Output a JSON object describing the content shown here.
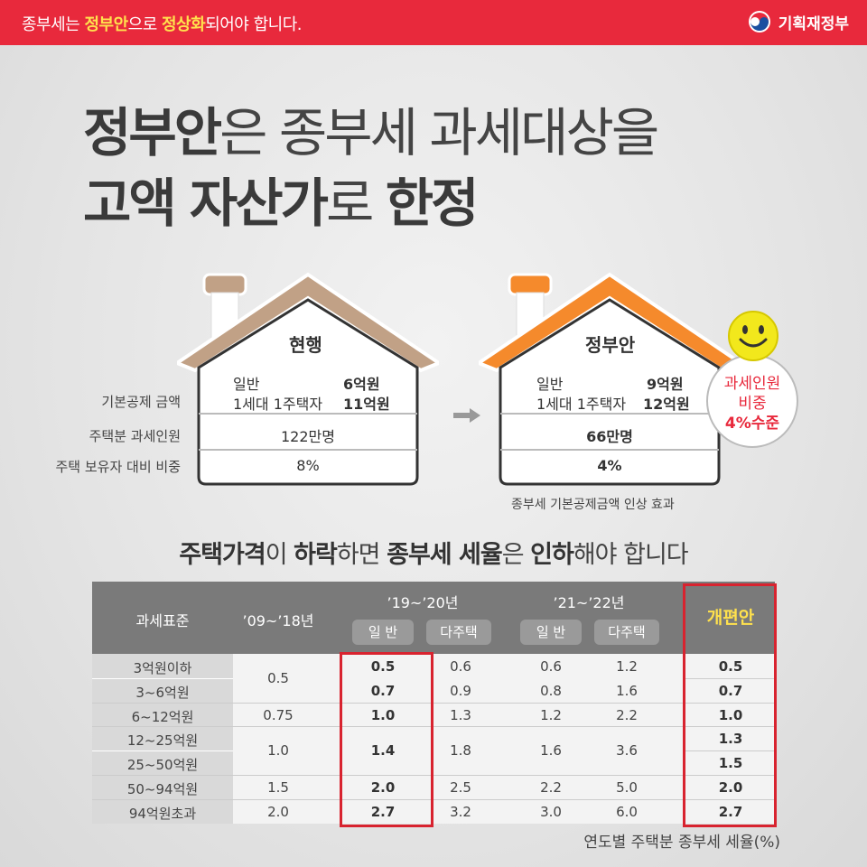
{
  "topbar": {
    "message_part1": "종부세는 ",
    "message_hl1": "정부안",
    "message_part2": "으로 ",
    "message_hl2": "정상화",
    "message_part3": "되어야 합니다.",
    "brand": "기획재정부",
    "brand_icon": "taegeuk-logo",
    "color": "#e8293c"
  },
  "headline": {
    "line1_bold": "정부안",
    "line1_rest": "은 종부세 과세대상을",
    "line2_bold1": "고액 자산가",
    "line2_mid": "로 ",
    "line2_bold2": "한정"
  },
  "row_labels": [
    "기본공제 금액",
    "주택분 과세인원",
    "주택 보유자 대비 비중"
  ],
  "current": {
    "title": "현행",
    "general_label": "일반",
    "general_value": "6억원",
    "single_label": "1세대 1주택자",
    "single_value": "11억원",
    "taxpayers": "122만명",
    "ratio": "8%"
  },
  "proposal": {
    "title": "정부안",
    "general_label": "일반",
    "general_value": "9억원",
    "single_label": "1세대 1주택자",
    "single_value": "12억원",
    "taxpayers": "66만명",
    "ratio": "4%",
    "caption": "종부세 기본공제금액 인상 효과"
  },
  "bubble": {
    "line1": "과세인원",
    "line2": "비중",
    "line3": "4%수준"
  },
  "subhead": {
    "p1": "주택가격",
    "p2": "이 ",
    "p3": "하락",
    "p4": "하면 ",
    "p5": "종부세 세율",
    "p6": "은 ",
    "p7": "인하",
    "p8": "해야 합니다"
  },
  "table": {
    "headers": {
      "bracket": "과세표준",
      "period1": "’09~’18년",
      "period2": "’19~’20년",
      "period3": "’21~’22년",
      "general": "일 반",
      "multi": "다주택",
      "reform": "개편안"
    },
    "rows": [
      {
        "bracket": "3억원이하",
        "g19": "0.5",
        "m19": "0.6",
        "g21": "0.6",
        "m21": "1.2",
        "reform": "0.5"
      },
      {
        "bracket": "3~6억원",
        "g19": "0.7",
        "m19": "0.9",
        "g21": "0.8",
        "m21": "1.6",
        "reform": "0.7"
      },
      {
        "bracket": "6~12억원",
        "old": "0.75",
        "g19": "1.0",
        "m19": "1.3",
        "g21": "1.2",
        "m21": "2.2",
        "reform": "1.0"
      },
      {
        "bracket": "12~25억원",
        "reform": "1.3"
      },
      {
        "bracket": "25~50억원",
        "reform": "1.5"
      },
      {
        "bracket": "50~94억원",
        "old": "1.5",
        "g19": "2.0",
        "m19": "2.5",
        "g21": "2.2",
        "m21": "5.0",
        "reform": "2.0"
      },
      {
        "bracket": "94억원초과",
        "old": "2.0",
        "g19": "2.7",
        "m19": "3.2",
        "g21": "3.0",
        "m21": "6.0",
        "reform": "2.7"
      }
    ],
    "merged": {
      "old_0_1": "0.5",
      "old_3_4": "1.0",
      "g19_3_4": "1.4",
      "m19_3_4": "1.8",
      "g21_3_4": "1.6",
      "m21_3_4": "3.6"
    },
    "caption": "연도별 주택분 종부세 세율(%)"
  }
}
